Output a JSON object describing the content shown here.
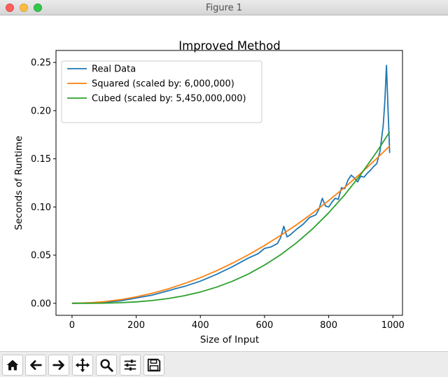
{
  "window": {
    "title": "Figure 1"
  },
  "chart_data": {
    "type": "line",
    "title": "Improved Method",
    "xlabel": "Size of Input",
    "ylabel": "Seconds of Runtime",
    "xlim": [
      -50,
      1030
    ],
    "ylim": [
      -0.0125,
      0.2625
    ],
    "xticks": [
      0,
      200,
      400,
      600,
      800,
      1000
    ],
    "yticks": [
      0.0,
      0.05,
      0.1,
      0.15,
      0.2,
      0.25
    ],
    "xtick_labels": [
      "0",
      "200",
      "400",
      "600",
      "800",
      "1000"
    ],
    "ytick_labels": [
      "0.00",
      "0.05",
      "0.10",
      "0.15",
      "0.20",
      "0.25"
    ],
    "grid": false,
    "legend_position": "upper-left",
    "series": [
      {
        "name": "Real Data",
        "color": "#1f77b4",
        "x": [
          0,
          50,
          100,
          150,
          200,
          250,
          300,
          320,
          350,
          400,
          450,
          500,
          550,
          580,
          600,
          620,
          640,
          650,
          660,
          670,
          680,
          700,
          720,
          740,
          760,
          770,
          780,
          790,
          800,
          810,
          820,
          830,
          840,
          850,
          860,
          870,
          880,
          890,
          900,
          910,
          920,
          930,
          940,
          950,
          960,
          970,
          975,
          980,
          985,
          990
        ],
        "y": [
          0.0,
          0.0005,
          0.001,
          0.0025,
          0.0055,
          0.0085,
          0.013,
          0.015,
          0.0175,
          0.023,
          0.03,
          0.038,
          0.047,
          0.0515,
          0.057,
          0.0585,
          0.062,
          0.068,
          0.08,
          0.069,
          0.071,
          0.077,
          0.082,
          0.089,
          0.092,
          0.098,
          0.109,
          0.101,
          0.1,
          0.105,
          0.109,
          0.108,
          0.12,
          0.119,
          0.128,
          0.133,
          0.13,
          0.126,
          0.132,
          0.131,
          0.135,
          0.138,
          0.142,
          0.145,
          0.158,
          0.185,
          0.21,
          0.247,
          0.2,
          0.156
        ]
      },
      {
        "name": "Squared (scaled by: 6,000,000)",
        "color": "#ff7f0e",
        "x": [
          0,
          50,
          100,
          150,
          200,
          250,
          300,
          350,
          400,
          450,
          500,
          550,
          600,
          650,
          700,
          750,
          800,
          850,
          900,
          950,
          990
        ],
        "y": [
          0.0,
          0.00042,
          0.00167,
          0.00375,
          0.00667,
          0.01042,
          0.015,
          0.02042,
          0.02667,
          0.03375,
          0.04167,
          0.05042,
          0.06,
          0.07042,
          0.08167,
          0.09375,
          0.10667,
          0.12042,
          0.135,
          0.15042,
          0.16335
        ]
      },
      {
        "name": "Cubed (scaled by: 5,450,000,000)",
        "color": "#2ca02c",
        "x": [
          0,
          50,
          100,
          150,
          200,
          250,
          300,
          350,
          400,
          450,
          500,
          550,
          600,
          650,
          700,
          750,
          800,
          850,
          900,
          950,
          990
        ],
        "y": [
          0.0,
          2e-05,
          0.00018,
          0.00062,
          0.00147,
          0.00287,
          0.00495,
          0.00787,
          0.01174,
          0.01672,
          0.02294,
          0.03053,
          0.03963,
          0.05039,
          0.06294,
          0.07741,
          0.09394,
          0.11268,
          0.13376,
          0.15732,
          0.17804
        ]
      }
    ]
  },
  "toolbar": {
    "buttons": [
      "home-icon",
      "back-icon",
      "forward-icon",
      "pan-icon",
      "zoom-icon",
      "configure-subplots-icon",
      "save-icon"
    ]
  }
}
